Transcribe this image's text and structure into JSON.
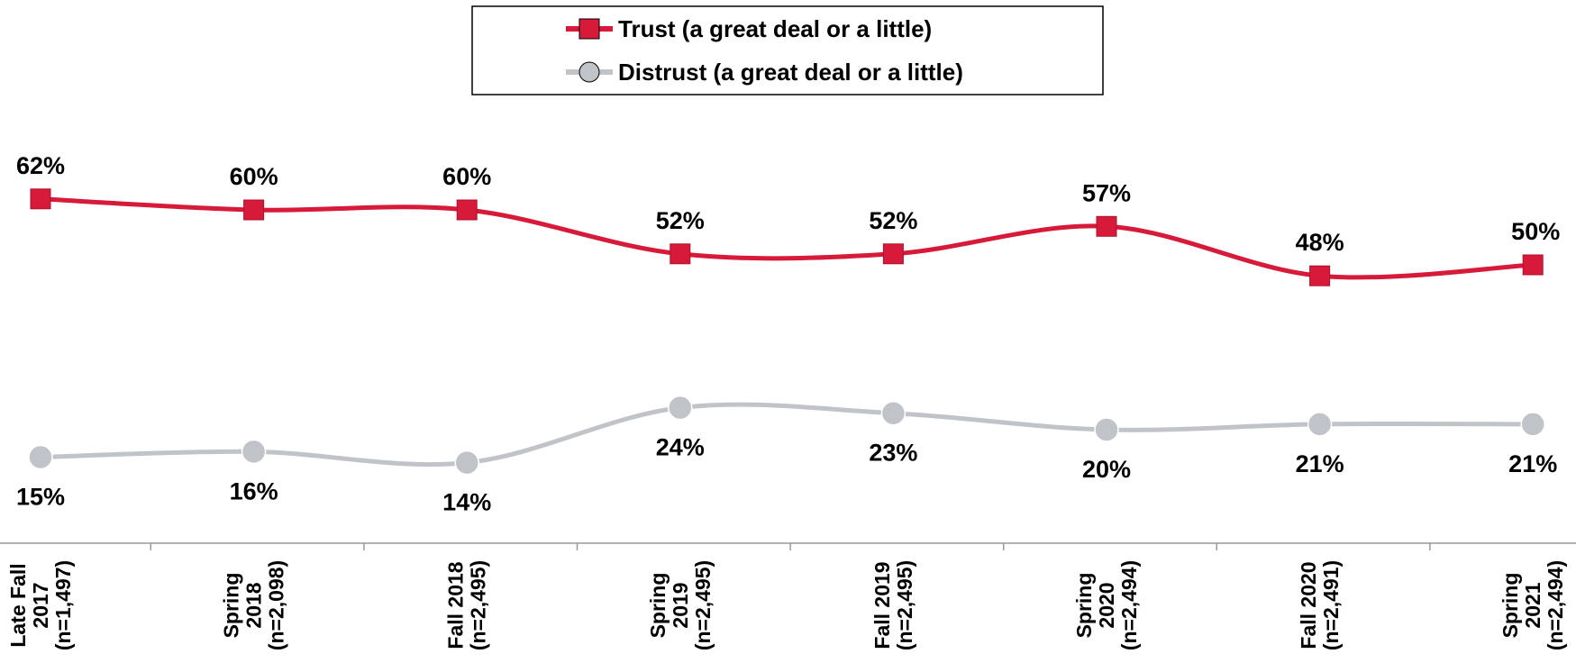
{
  "chart_data": {
    "type": "line",
    "categories": [
      "Late Fall\n2017\n(n=1,497)",
      "Spring\n2018\n(n=2,098)",
      "Fall 2018\n(n=2,495)",
      "Spring\n2019\n(n=2,495)",
      "Fall 2019\n(n=2,495)",
      "Spring\n2020\n(n=2,494)",
      "Fall 2020\n(n=2,491)",
      "Spring\n2021\n(n=2,494)"
    ],
    "series": [
      {
        "name": "Trust (a great deal or a little)",
        "color": "#d7193a",
        "marker": "square",
        "values": [
          62,
          60,
          60,
          52,
          52,
          57,
          48,
          50
        ],
        "value_labels": [
          "62%",
          "60%",
          "60%",
          "52%",
          "52%",
          "57%",
          "48%",
          "50%"
        ]
      },
      {
        "name": "Distrust (a great deal or a little)",
        "color": "#c0c4c8",
        "marker": "circle",
        "values": [
          15,
          16,
          14,
          24,
          23,
          20,
          21,
          21
        ],
        "value_labels": [
          "15%",
          "16%",
          "14%",
          "24%",
          "23%",
          "20%",
          "21%",
          "21%"
        ]
      }
    ],
    "ylim": [
      0,
      75
    ],
    "legend": "top"
  }
}
